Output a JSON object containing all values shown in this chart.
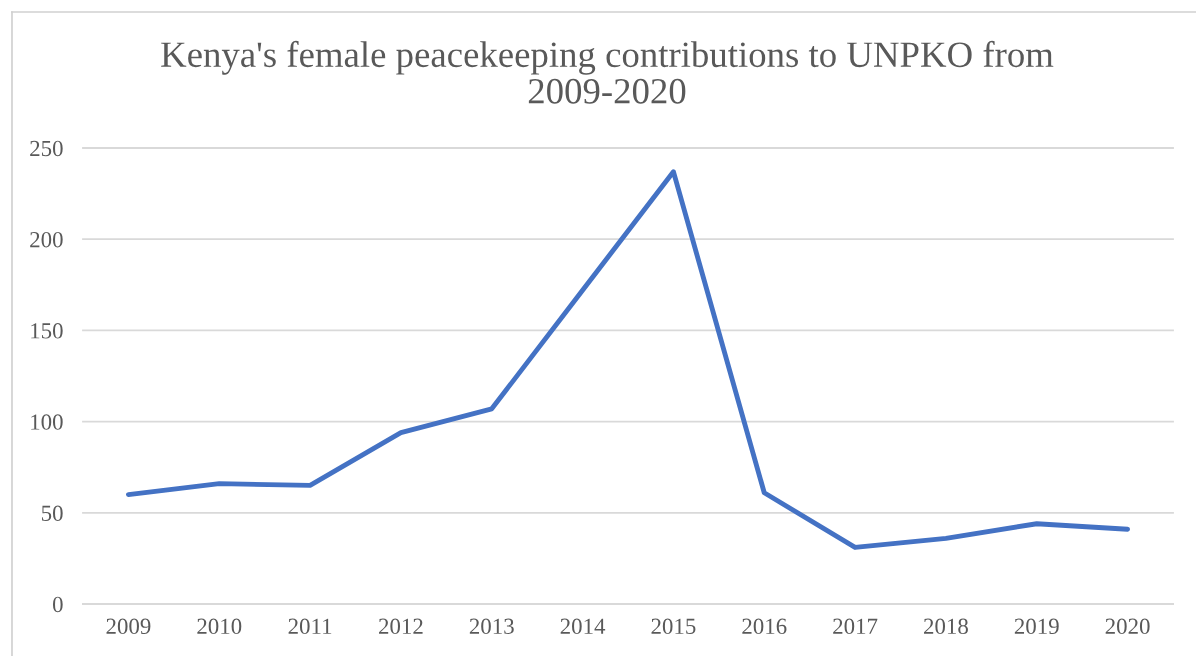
{
  "chart_data": {
    "type": "line",
    "title": "Kenya's female peacekeeping contributions to UNPKO from\n2009-2020",
    "categories": [
      "2009",
      "2010",
      "2011",
      "2012",
      "2013",
      "2014",
      "2015",
      "2016",
      "2017",
      "2018",
      "2019",
      "2020"
    ],
    "series": [
      {
        "color": "#4472c4",
        "values": [
          60,
          66,
          65,
          94,
          107,
          172,
          237,
          61,
          31,
          36,
          44,
          41
        ]
      }
    ],
    "ylim": [
      0,
      250
    ],
    "yticks": [
      0,
      50,
      100,
      150,
      200,
      250
    ],
    "grid": "y",
    "marker": "none",
    "line_style": "solid"
  }
}
